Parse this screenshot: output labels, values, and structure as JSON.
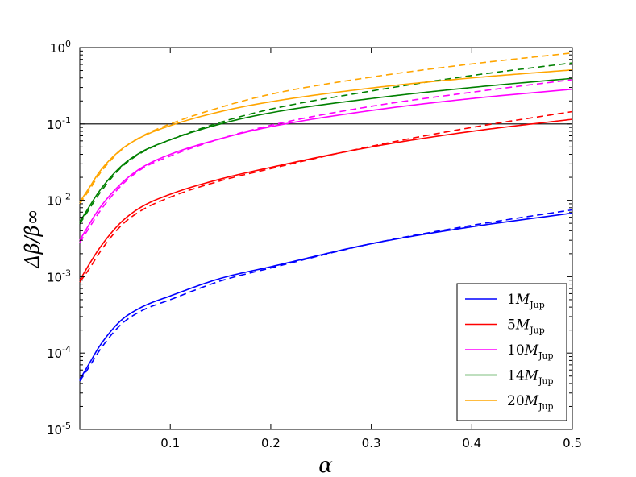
{
  "chart_data": {
    "type": "line",
    "xlabel": "α",
    "ylabel": "Δβ/β∞",
    "xscale": "linear",
    "yscale": "log",
    "xlim": [
      0.01,
      0.5
    ],
    "ylim": [
      1e-05,
      1
    ],
    "x_ticks": [
      {
        "value": 0.1,
        "label": "0.1"
      },
      {
        "value": 0.2,
        "label": "0.2"
      },
      {
        "value": 0.3,
        "label": "0.3"
      },
      {
        "value": 0.4,
        "label": "0.4"
      },
      {
        "value": 0.5,
        "label": "0.5"
      }
    ],
    "y_ticks": [
      {
        "value": 1e-05,
        "base": "10",
        "exp": "-5"
      },
      {
        "value": 0.0001,
        "base": "10",
        "exp": "-4"
      },
      {
        "value": 0.001,
        "base": "10",
        "exp": "-3"
      },
      {
        "value": 0.01,
        "base": "10",
        "exp": "-2"
      },
      {
        "value": 0.1,
        "base": "10",
        "exp": "-1"
      },
      {
        "value": 1,
        "base": "10",
        "exp": "0"
      }
    ],
    "reference_line": {
      "y": 0.1,
      "color": "#000000"
    },
    "legend_position": "lower-right",
    "x": [
      0.01,
      0.02,
      0.03,
      0.05,
      0.07,
      0.1,
      0.15,
      0.2,
      0.3,
      0.4,
      0.5
    ],
    "series": [
      {
        "name": "1M_Jup",
        "label_main": "1",
        "label_italic": "M",
        "label_sub": "Jup",
        "color": "#0000ff",
        "solid": [
          4.5e-05,
          7.5e-05,
          0.000125,
          0.00026,
          0.00039,
          0.00056,
          0.00095,
          0.00135,
          0.0027,
          0.0045,
          0.0068
        ],
        "dashed": [
          4.3e-05,
          6.8e-05,
          0.00011,
          0.00023,
          0.00035,
          0.0005,
          0.00088,
          0.0013,
          0.0027,
          0.0047,
          0.0075
        ]
      },
      {
        "name": "5M_Jup",
        "label_main": "5",
        "label_italic": "M",
        "label_sub": "Jup",
        "color": "#ff0000",
        "solid": [
          0.0009,
          0.0015,
          0.0024,
          0.005,
          0.008,
          0.012,
          0.019,
          0.027,
          0.05,
          0.08,
          0.115
        ],
        "dashed": [
          0.00085,
          0.0013,
          0.0021,
          0.0045,
          0.0072,
          0.011,
          0.018,
          0.026,
          0.051,
          0.09,
          0.145
        ]
      },
      {
        "name": "10M_Jup",
        "label_main": "10",
        "label_italic": "M",
        "label_sub": "Jup",
        "color": "#ff00ff",
        "solid": [
          0.003,
          0.005,
          0.008,
          0.016,
          0.026,
          0.04,
          0.064,
          0.092,
          0.15,
          0.215,
          0.285
        ],
        "dashed": [
          0.0028,
          0.0045,
          0.0072,
          0.015,
          0.025,
          0.038,
          0.064,
          0.096,
          0.17,
          0.26,
          0.38
        ]
      },
      {
        "name": "14M_Jup",
        "label_main": "14",
        "label_italic": "M",
        "label_sub": "Jup",
        "color": "#008000",
        "solid": [
          0.0052,
          0.0085,
          0.0135,
          0.027,
          0.042,
          0.062,
          0.1,
          0.14,
          0.215,
          0.3,
          0.395
        ],
        "dashed": [
          0.0049,
          0.0079,
          0.0125,
          0.026,
          0.041,
          0.062,
          0.105,
          0.156,
          0.27,
          0.43,
          0.63
        ]
      },
      {
        "name": "20M_Jup",
        "label_main": "20",
        "label_italic": "M",
        "label_sub": "Jup",
        "color": "#ffa500",
        "solid": [
          0.0095,
          0.015,
          0.024,
          0.045,
          0.066,
          0.095,
          0.145,
          0.195,
          0.295,
          0.4,
          0.51
        ],
        "dashed": [
          0.009,
          0.014,
          0.0225,
          0.044,
          0.067,
          0.1,
          0.165,
          0.245,
          0.41,
          0.61,
          0.85
        ]
      }
    ]
  }
}
